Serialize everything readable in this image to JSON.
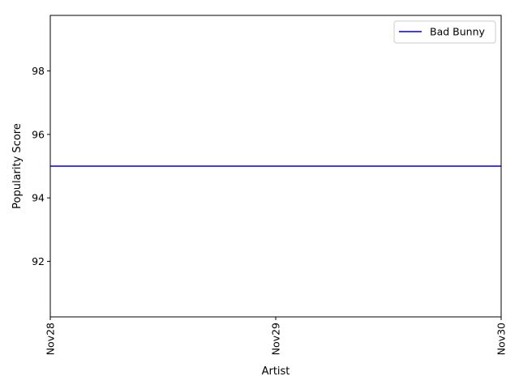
{
  "chart_data": {
    "type": "line",
    "title": "",
    "xlabel": "Artist",
    "ylabel": "Popularity Score",
    "categories": [
      "Nov28",
      "Nov29",
      "Nov30"
    ],
    "xlim": [
      0,
      2
    ],
    "ylim": [
      90.25,
      99.75
    ],
    "yticks": [
      92,
      94,
      96,
      98
    ],
    "series": [
      {
        "name": "Bad Bunny",
        "values": [
          95,
          95,
          95
        ],
        "color": "#0000cc"
      }
    ],
    "legend": "top-right",
    "grid": false
  }
}
